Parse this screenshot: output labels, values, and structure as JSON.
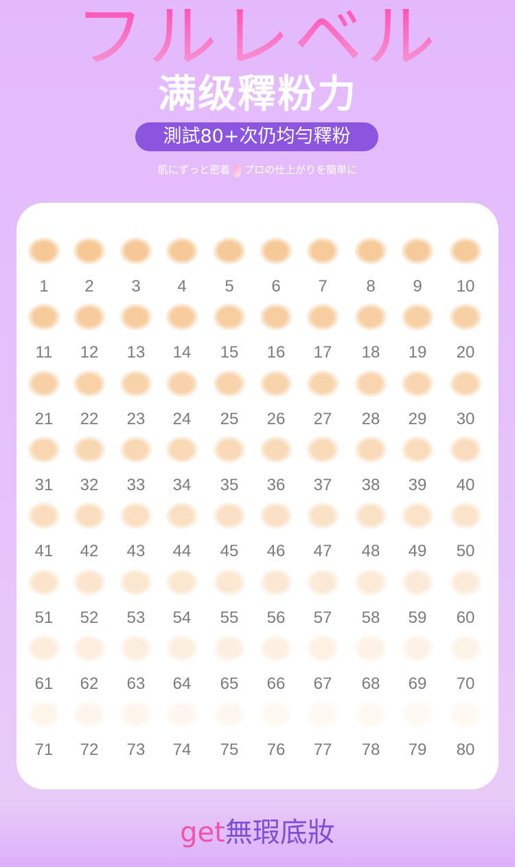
{
  "header": {
    "background_title": "フルレベル",
    "title": "满级釋粉力",
    "pill": "測試80+次仍均勻釋粉",
    "tagline_left": "肌にずっと密着",
    "tagline_right": "プロの仕上がりを簡単に"
  },
  "grid": {
    "swatch_color": "#f6c896",
    "labels": [
      "1",
      "2",
      "3",
      "4",
      "5",
      "6",
      "7",
      "8",
      "9",
      "10",
      "11",
      "12",
      "13",
      "14",
      "15",
      "16",
      "17",
      "18",
      "19",
      "20",
      "21",
      "22",
      "23",
      "24",
      "25",
      "26",
      "27",
      "28",
      "29",
      "30",
      "31",
      "32",
      "33",
      "34",
      "35",
      "36",
      "37",
      "38",
      "39",
      "40",
      "41",
      "42",
      "43",
      "44",
      "45",
      "46",
      "47",
      "48",
      "49",
      "50",
      "51",
      "52",
      "53",
      "54",
      "55",
      "56",
      "57",
      "58",
      "59",
      "60",
      "61",
      "62",
      "63",
      "64",
      "65",
      "66",
      "67",
      "68",
      "69",
      "70",
      "71",
      "72",
      "73",
      "74",
      "75",
      "76",
      "77",
      "78",
      "79",
      "80"
    ]
  },
  "footer": {
    "get": "get",
    "text": "無瑕底妝"
  },
  "colors": {
    "pill": "#8b55df",
    "accent_pink": "#f054a7",
    "accent_purple": "#7d4fd6"
  }
}
